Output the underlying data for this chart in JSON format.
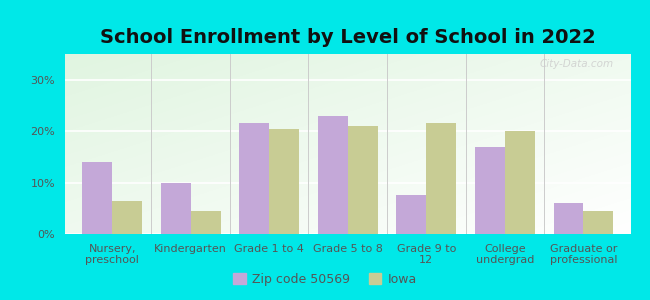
{
  "title": "School Enrollment by Level of School in 2022",
  "categories": [
    "Nursery,\npreschool",
    "Kindergarten",
    "Grade 1 to 4",
    "Grade 5 to 8",
    "Grade 9 to\n12",
    "College\nundergrad",
    "Graduate or\nprofessional"
  ],
  "zip_values": [
    14,
    10,
    21.5,
    23,
    7.5,
    17,
    6
  ],
  "iowa_values": [
    6.5,
    4.5,
    20.5,
    21,
    21.5,
    20,
    4.5
  ],
  "zip_color": "#c4a8d8",
  "iowa_color": "#c8cc94",
  "background_color": "#00e8e8",
  "ylim": [
    0,
    35
  ],
  "yticks": [
    0,
    10,
    20,
    30
  ],
  "ytick_labels": [
    "0%",
    "10%",
    "20%",
    "30%"
  ],
  "legend_zip_label": "Zip code 50569",
  "legend_iowa_label": "Iowa",
  "bar_width": 0.38,
  "title_fontsize": 14,
  "tick_fontsize": 8,
  "legend_fontsize": 9,
  "watermark": "City-Data.com",
  "grid_color": "#dddddd",
  "text_color": "#555555"
}
